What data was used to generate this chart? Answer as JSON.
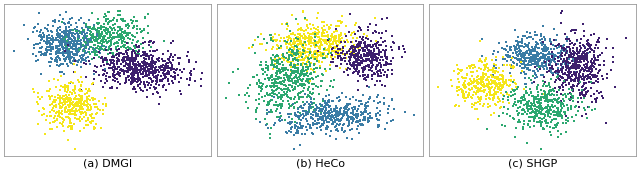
{
  "title_a": "(a) DMGI",
  "title_b": "(b) HeCo",
  "title_c": "(c) SHGP",
  "colors_teal": "#3a7ca5",
  "colors_green": "#2ca870",
  "colors_purple": "#3d1f6e",
  "colors_yellow": "#f5e61a",
  "seed": 7,
  "background": "#ffffff",
  "point_size": 3.5,
  "alpha": 1.0,
  "fig_width": 6.4,
  "fig_height": 1.73
}
